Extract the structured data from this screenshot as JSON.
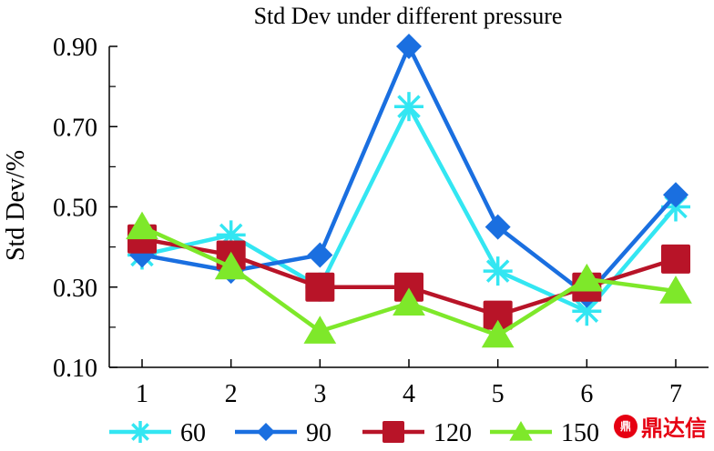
{
  "chart_data": {
    "type": "line",
    "title": "Std Dev under different pressure",
    "xlabel": "",
    "ylabel": "Std Dev/%",
    "x": [
      1,
      2,
      3,
      4,
      5,
      6,
      7
    ],
    "x_tick_labels": [
      "1",
      "2",
      "3",
      "4",
      "5",
      "6",
      "7"
    ],
    "ylim": [
      0.1,
      0.9
    ],
    "y_ticks": [
      0.1,
      0.3,
      0.5,
      0.7,
      0.9
    ],
    "y_tick_labels": [
      "0.10",
      "0.30",
      "0.50",
      "0.70",
      "0.90"
    ],
    "y_minor_ticks": [
      0.2,
      0.4,
      0.6,
      0.8
    ],
    "grid": false,
    "legend_position": "bottom",
    "series": [
      {
        "name": "60",
        "color": "#33e6f2",
        "marker": "asterisk",
        "values": [
          0.38,
          0.43,
          0.3,
          0.75,
          0.34,
          0.24,
          0.5
        ]
      },
      {
        "name": "90",
        "color": "#1a6fe0",
        "marker": "diamond",
        "values": [
          0.38,
          0.34,
          0.38,
          0.9,
          0.45,
          0.28,
          0.53
        ]
      },
      {
        "name": "120",
        "color": "#b81428",
        "marker": "square",
        "values": [
          0.42,
          0.38,
          0.3,
          0.3,
          0.23,
          0.3,
          0.37
        ]
      },
      {
        "name": "150",
        "color": "#7ee82a",
        "marker": "triangle",
        "values": [
          0.45,
          0.35,
          0.19,
          0.26,
          0.18,
          0.32,
          0.29
        ]
      }
    ]
  },
  "watermark": {
    "logo_glyph": "鼎",
    "text": "鼎达信"
  }
}
